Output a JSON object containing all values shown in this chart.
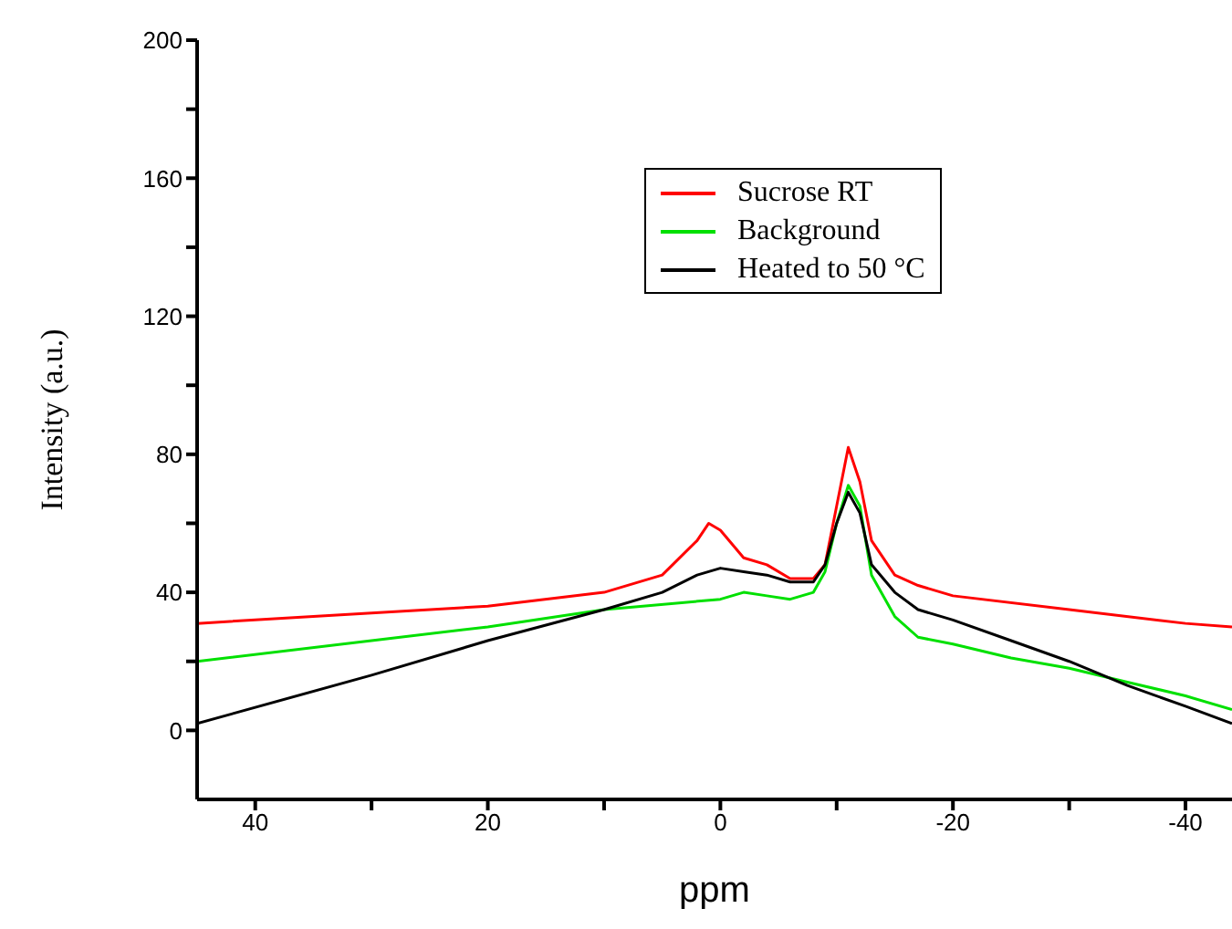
{
  "chart_data": {
    "type": "line",
    "xlabel": "ppm",
    "ylabel": "Intensity (a.u.)",
    "xlim": [
      45,
      -44
    ],
    "xticks": [
      40,
      {
        "value": 30,
        "label": null
      },
      20,
      {
        "value": 10,
        "label": null
      },
      0,
      {
        "value": -10,
        "label": null
      },
      -20,
      {
        "value": -30,
        "label": null
      },
      -40
    ],
    "ylim": [
      -20,
      200
    ],
    "yticks": [
      0,
      {
        "value": 20,
        "label": null
      },
      40,
      {
        "value": 60,
        "label": null
      },
      80,
      {
        "value": 100,
        "label": null
      },
      120,
      {
        "value": 140,
        "label": null
      },
      160,
      {
        "value": 180,
        "label": null
      },
      200
    ],
    "grid": false,
    "legend": "top right",
    "marker": "none",
    "line_style": "solid",
    "series": [
      {
        "name": "Sucrose RT",
        "color": "#ff0000",
        "x": [
          45,
          30,
          20,
          10,
          5,
          2,
          1,
          0,
          -2,
          -4,
          -6,
          -8,
          -9,
          -10,
          -11,
          -12,
          -13,
          -15,
          -17,
          -20,
          -30,
          -40,
          -44
        ],
        "values": [
          31,
          34,
          36,
          40,
          45,
          55,
          60,
          58,
          50,
          48,
          44,
          44,
          48,
          65,
          82,
          72,
          55,
          45,
          42,
          39,
          35,
          31,
          30
        ]
      },
      {
        "name": "Background",
        "color": "#00e000",
        "x": [
          45,
          30,
          20,
          10,
          0,
          -2,
          -4,
          -6,
          -8,
          -9,
          -10,
          -11,
          -12,
          -13,
          -15,
          -17,
          -20,
          -25,
          -30,
          -35,
          -40,
          -44
        ],
        "values": [
          20,
          26,
          30,
          35,
          38,
          40,
          39,
          38,
          40,
          46,
          60,
          71,
          65,
          45,
          33,
          27,
          25,
          21,
          18,
          14,
          10,
          6
        ]
      },
      {
        "name": "Heated to 50 °C",
        "color": "#000000",
        "x": [
          45,
          30,
          20,
          10,
          5,
          2,
          0,
          -2,
          -4,
          -6,
          -8,
          -9,
          -10,
          -11,
          -12,
          -13,
          -15,
          -17,
          -20,
          -25,
          -30,
          -35,
          -40,
          -44
        ],
        "values": [
          2,
          16,
          26,
          35,
          40,
          45,
          47,
          46,
          45,
          43,
          43,
          48,
          60,
          69,
          63,
          48,
          40,
          35,
          32,
          26,
          20,
          13,
          7,
          2
        ]
      }
    ]
  }
}
